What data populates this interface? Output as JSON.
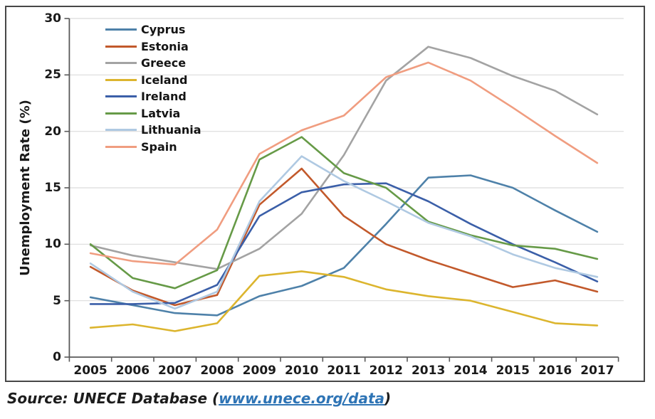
{
  "chart_data": {
    "type": "line",
    "title": "",
    "ylabel": "Unemployment Rate (%)",
    "xlabel": "",
    "categories": [
      "2005",
      "2006",
      "2007",
      "2008",
      "2009",
      "2010",
      "2011",
      "2012",
      "2013",
      "2014",
      "2015",
      "2016",
      "2017"
    ],
    "ylim": [
      0,
      30
    ],
    "yticks": [
      0,
      5,
      10,
      15,
      20,
      25,
      30
    ],
    "grid": true,
    "legend_position": "top-left",
    "series": [
      {
        "name": "Cyprus",
        "color": "#4E81A9",
        "values": [
          5.3,
          4.6,
          3.9,
          3.7,
          5.4,
          6.3,
          7.9,
          11.8,
          15.9,
          16.1,
          15.0,
          13.0,
          11.1
        ]
      },
      {
        "name": "Estonia",
        "color": "#C2592B",
        "values": [
          8.0,
          5.9,
          4.6,
          5.5,
          13.5,
          16.7,
          12.5,
          10.0,
          8.6,
          7.4,
          6.2,
          6.8,
          5.8
        ]
      },
      {
        "name": "Greece",
        "color": "#A3A3A3",
        "values": [
          9.9,
          9.0,
          8.4,
          7.8,
          9.6,
          12.7,
          17.9,
          24.5,
          27.5,
          26.5,
          24.9,
          23.6,
          21.5
        ]
      },
      {
        "name": "Iceland",
        "color": "#DCB52E",
        "values": [
          2.6,
          2.9,
          2.3,
          3.0,
          7.2,
          7.6,
          7.1,
          6.0,
          5.4,
          5.0,
          4.0,
          3.0,
          2.8
        ]
      },
      {
        "name": "Ireland",
        "color": "#3B5FA8",
        "values": [
          4.7,
          4.7,
          4.8,
          6.4,
          12.5,
          14.6,
          15.3,
          15.4,
          13.8,
          11.8,
          10.0,
          8.4,
          6.7
        ]
      },
      {
        "name": "Latvia",
        "color": "#669A47",
        "values": [
          10.0,
          7.0,
          6.1,
          7.7,
          17.5,
          19.5,
          16.3,
          15.0,
          12.0,
          10.8,
          9.9,
          9.6,
          8.7
        ]
      },
      {
        "name": "Lithuania",
        "color": "#AFC9E2",
        "values": [
          8.3,
          5.8,
          4.3,
          5.8,
          13.8,
          17.8,
          15.6,
          13.8,
          11.9,
          10.7,
          9.1,
          7.9,
          7.1
        ]
      },
      {
        "name": "Spain",
        "color": "#F09D80",
        "values": [
          9.2,
          8.5,
          8.2,
          11.3,
          18.0,
          20.1,
          21.4,
          24.8,
          26.1,
          24.5,
          22.1,
          19.6,
          17.2
        ]
      }
    ]
  },
  "source": {
    "prefix": "Source: UNECE Database (",
    "link_text": "www.unece.org/data",
    "suffix": ")"
  },
  "colors": {
    "axis": "#595959",
    "grid": "#DCDCDC",
    "frame": "#474747",
    "link": "#2E74B5",
    "text": "#1a1a1a"
  }
}
